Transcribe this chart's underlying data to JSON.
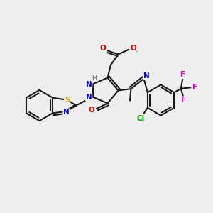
{
  "bg_color": "#eeeeee",
  "bond_color": "#1a1a1a",
  "N_color": "#0000ee",
  "S_color": "#ccaa00",
  "O_color": "#dd0000",
  "F_color": "#cc00cc",
  "Cl_color": "#00aa00",
  "H_color": "#808080",
  "font_size": 7.5,
  "dpi": 100,
  "xlim": [
    0,
    10
  ],
  "ylim": [
    0,
    10
  ]
}
